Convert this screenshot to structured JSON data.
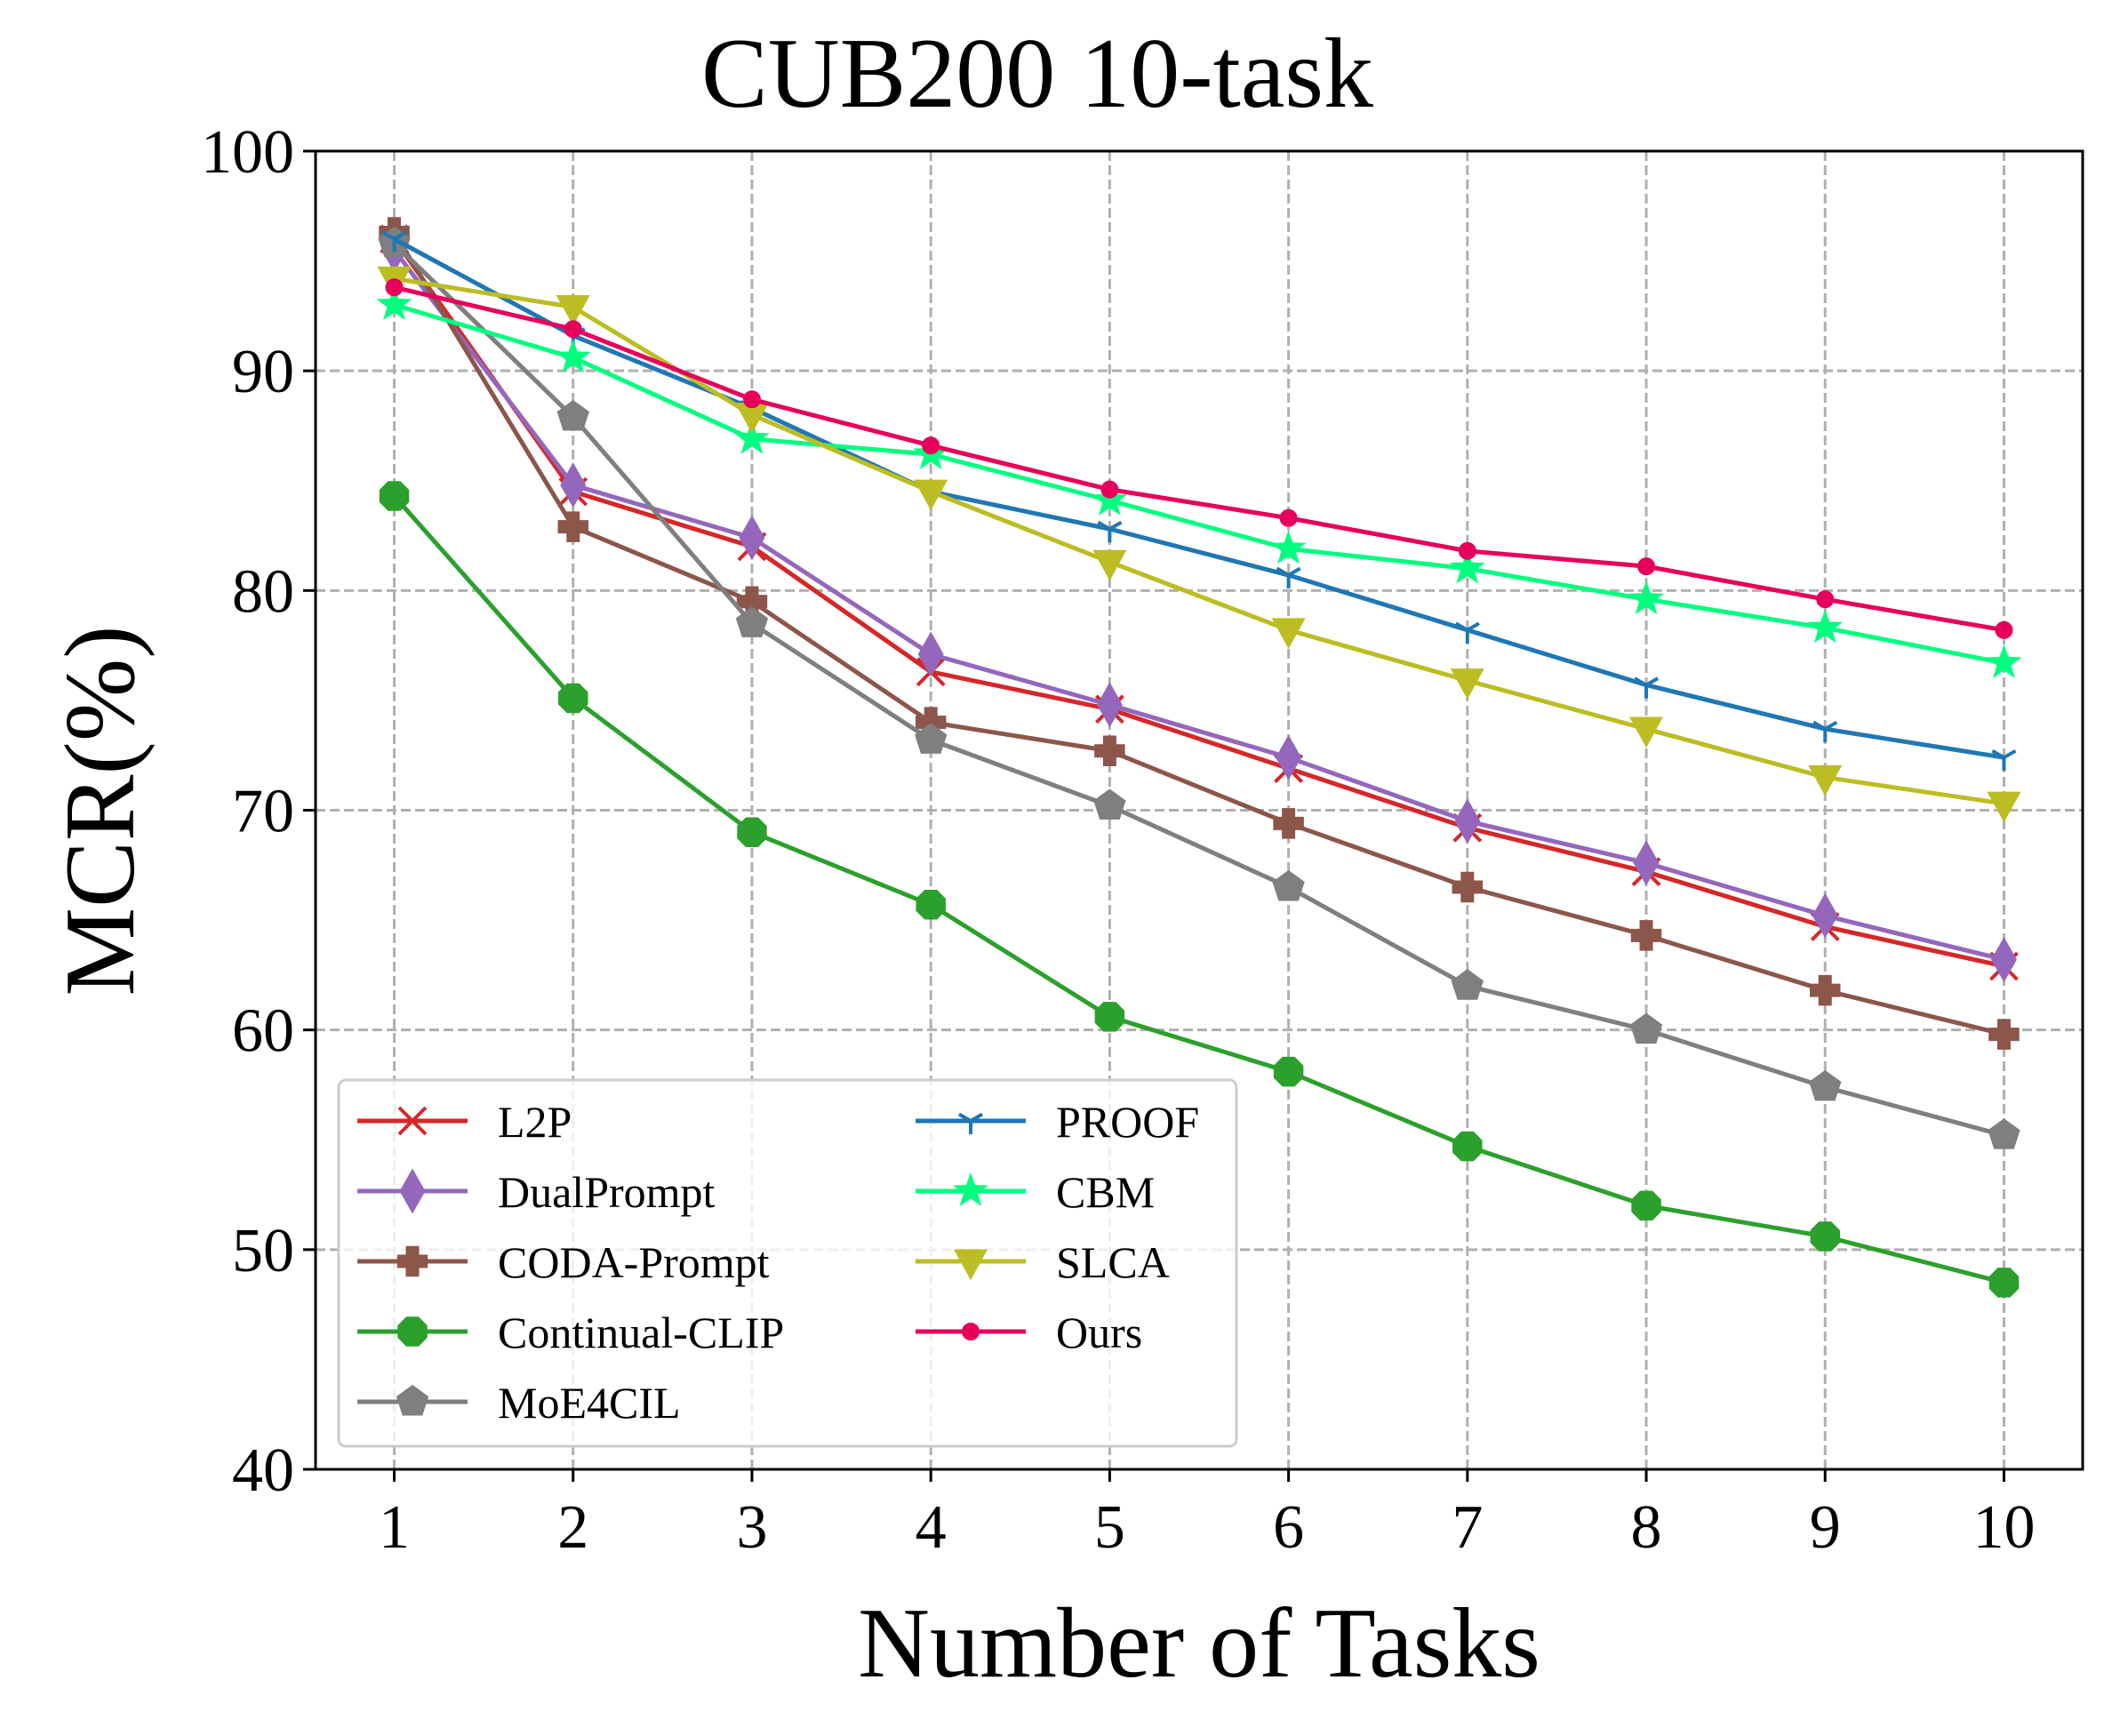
{
  "chart_data": {
    "type": "line",
    "title": "CUB200 10-task",
    "xlabel": "Number of Tasks",
    "ylabel": "MCR(%)",
    "x": [
      1,
      2,
      3,
      4,
      5,
      6,
      7,
      8,
      9,
      10
    ],
    "xticks": [
      "1",
      "2",
      "3",
      "4",
      "5",
      "6",
      "7",
      "8",
      "9",
      "10"
    ],
    "yticks": [
      "40",
      "50",
      "60",
      "70",
      "80",
      "90",
      "100"
    ],
    "ylim": [
      40,
      100
    ],
    "xlim": [
      0.56,
      10.44
    ],
    "grid": true,
    "legend_position": "lower-left",
    "series": [
      {
        "name": "L2P",
        "color": "#d62728",
        "marker": "x",
        "values": [
          96.0,
          84.5,
          82.0,
          76.3,
          74.6,
          71.9,
          69.2,
          67.2,
          64.7,
          62.9
        ]
      },
      {
        "name": "DualPrompt",
        "color": "#9467bd",
        "marker": "thin_diamond",
        "values": [
          95.5,
          84.8,
          82.4,
          77.1,
          74.8,
          72.4,
          69.5,
          67.6,
          65.2,
          63.2
        ]
      },
      {
        "name": "CODA-Prompt",
        "color": "#8c564b",
        "marker": "plus_filled",
        "values": [
          96.3,
          82.9,
          79.5,
          74.0,
          72.7,
          69.4,
          66.5,
          64.3,
          61.8,
          59.8
        ]
      },
      {
        "name": "Continual-CLIP",
        "color": "#2ca02c",
        "marker": "octagon",
        "values": [
          84.3,
          75.1,
          69.0,
          65.7,
          60.6,
          58.1,
          54.7,
          52.0,
          50.6,
          48.5
        ]
      },
      {
        "name": "MoE4CIL",
        "color": "#7f7f7f",
        "marker": "pentagon",
        "values": [
          95.8,
          87.9,
          78.5,
          73.2,
          70.2,
          66.5,
          62.0,
          60.0,
          57.4,
          55.2
        ]
      },
      {
        "name": "PROOF",
        "color": "#1f77b4",
        "marker": "tri_down",
        "values": [
          96.0,
          91.6,
          88.3,
          84.5,
          82.8,
          80.7,
          78.2,
          75.7,
          73.7,
          72.4
        ]
      },
      {
        "name": "CBM",
        "color": "#00ff7f",
        "marker": "star",
        "values": [
          93.0,
          90.6,
          86.9,
          86.2,
          84.1,
          81.9,
          81.0,
          79.6,
          78.3,
          76.7
        ]
      },
      {
        "name": "SLCA",
        "color": "#bcbd22",
        "marker": "triangle_down",
        "values": [
          94.2,
          92.9,
          88.0,
          84.5,
          81.3,
          78.2,
          75.9,
          73.7,
          71.5,
          70.3
        ]
      },
      {
        "name": "Ours",
        "color": "#e6005c",
        "marker": "point",
        "values": [
          93.8,
          91.9,
          88.7,
          86.6,
          84.6,
          83.3,
          81.8,
          81.1,
          79.6,
          78.2
        ]
      }
    ]
  }
}
